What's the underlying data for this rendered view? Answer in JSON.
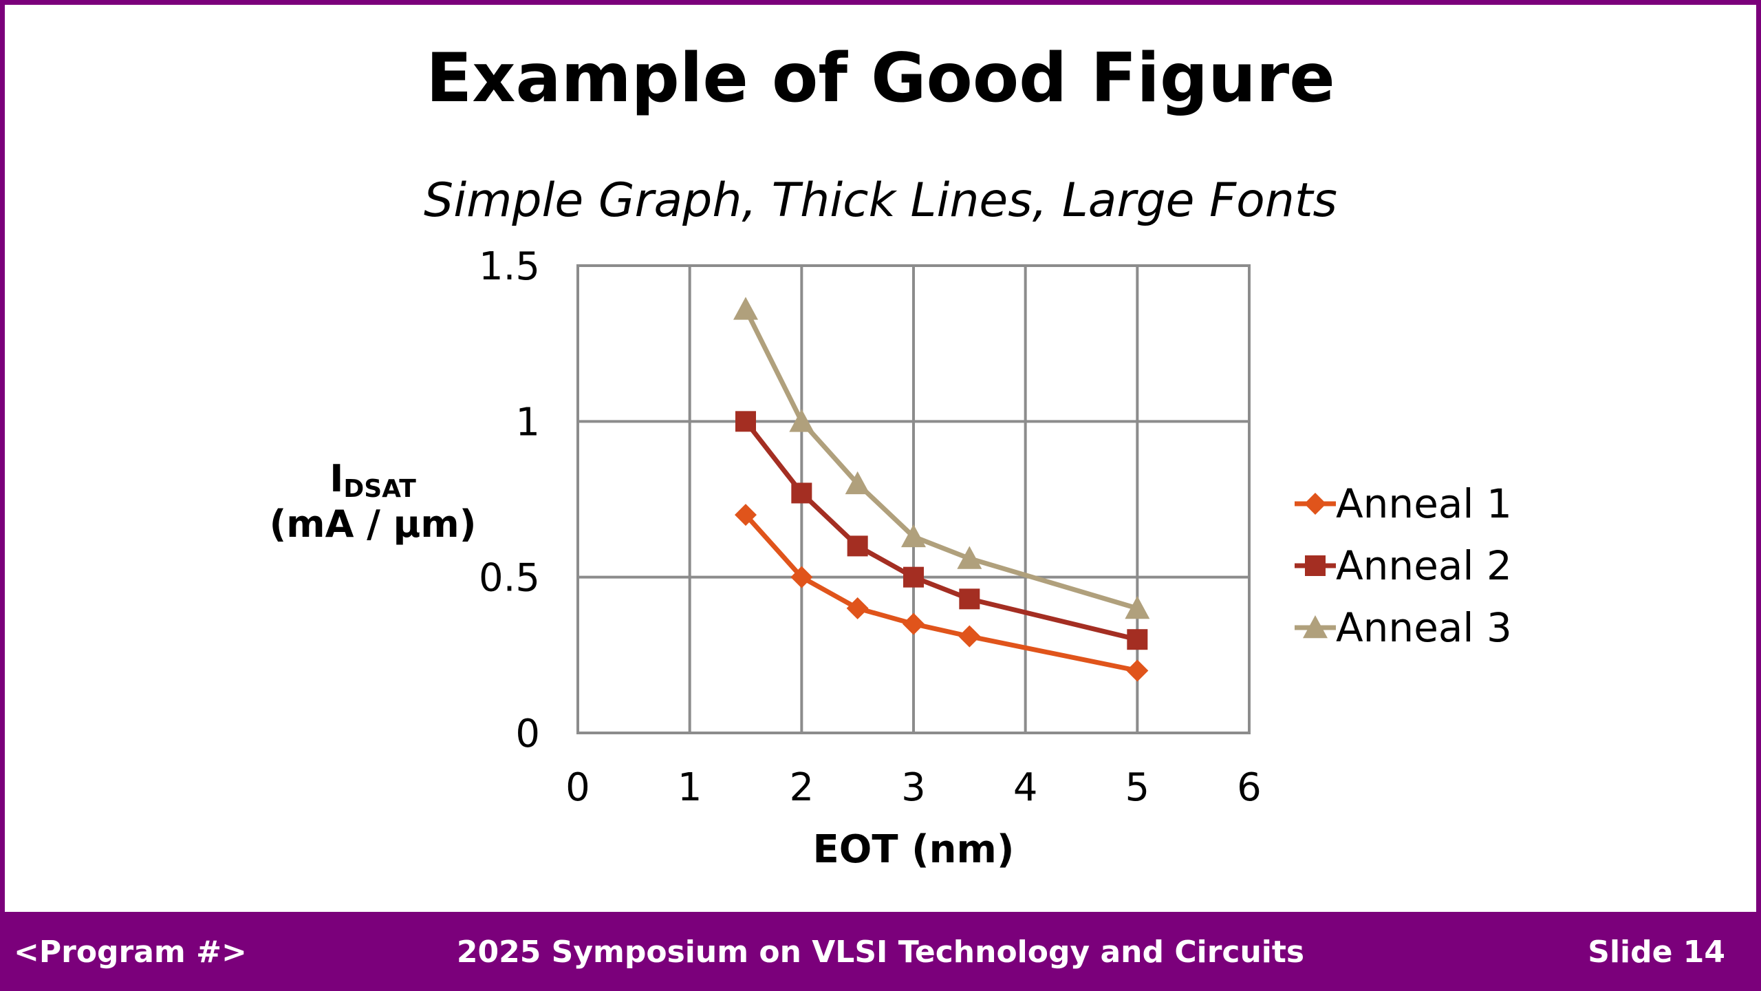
{
  "slide": {
    "title": "Example of Good Figure",
    "subtitle": "Simple Graph, Thick Lines, Large Fonts"
  },
  "footer": {
    "left": "<Program #>",
    "center": "2025 Symposium on VLSI Technology and Circuits",
    "right": "Slide 14",
    "background": "#7b007b"
  },
  "chart_data": {
    "type": "line",
    "xlabel": "EOT (nm)",
    "ylabel_main": "I",
    "ylabel_sub": "DSAT",
    "ylabel_unit": "(mA / µm)",
    "xlim": [
      0,
      6
    ],
    "ylim": [
      0,
      1.5
    ],
    "xticks": [
      0,
      1,
      2,
      3,
      4,
      5,
      6
    ],
    "xtick_labels": [
      "0",
      "1",
      "2",
      "3",
      "4",
      "5",
      "6"
    ],
    "yticks": [
      0,
      0.5,
      1,
      1.5
    ],
    "ytick_labels": [
      "0",
      "0.5",
      "1",
      "1.5"
    ],
    "grid": true,
    "legend_position": "right",
    "x": [
      1.5,
      2,
      2.5,
      3,
      3.5,
      5
    ],
    "series": [
      {
        "name": "Anneal 1",
        "values": [
          0.7,
          0.5,
          0.4,
          0.35,
          0.31,
          0.2
        ],
        "color": "#e0541b",
        "marker": "diamond"
      },
      {
        "name": "Anneal 2",
        "values": [
          1.0,
          0.77,
          0.6,
          0.5,
          0.43,
          0.3
        ],
        "color": "#a42e22",
        "marker": "square"
      },
      {
        "name": "Anneal 3",
        "values": [
          1.36,
          1.0,
          0.8,
          0.63,
          0.56,
          0.4
        ],
        "color": "#b0a07c",
        "marker": "triangle"
      }
    ]
  }
}
